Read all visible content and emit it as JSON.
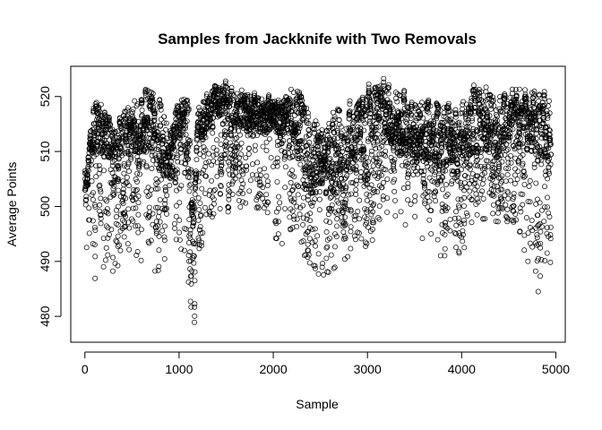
{
  "chart_data": {
    "type": "scatter",
    "title": "Samples from Jackknife with Two Removals",
    "xlabel": "Sample",
    "ylabel": "Average Points",
    "xlim": [
      -150,
      5100
    ],
    "ylim": [
      475.3,
      525.5
    ],
    "xticks": [
      0,
      1000,
      2000,
      3000,
      4000,
      5000
    ],
    "yticks": [
      480,
      490,
      500,
      510,
      520
    ],
    "grid": false,
    "legend": "none",
    "marker": "open-circle",
    "n_points": 4950,
    "series": [
      {
        "outline_x": [
          0,
          100,
          200,
          300,
          400,
          500,
          600,
          700,
          800,
          900,
          1000,
          1100,
          1150,
          1200,
          1300,
          1400,
          1500,
          1600,
          1700,
          1800,
          1900,
          2000,
          2100,
          2200,
          2300,
          2400,
          2500,
          2600,
          2700,
          2800,
          2900,
          3000,
          3100,
          3200,
          3300,
          3400,
          3500,
          3600,
          3700,
          3800,
          3900,
          4000,
          4100,
          4200,
          4300,
          4400,
          4500,
          4600,
          4700,
          4800,
          4900
        ],
        "outline_y_center": [
          503,
          512,
          512,
          510,
          512,
          512,
          513,
          514,
          510,
          508,
          514,
          510,
          496,
          513,
          516,
          518,
          518,
          516,
          516,
          516,
          515,
          516,
          514,
          516,
          510,
          505,
          507,
          507,
          507,
          510,
          511,
          513,
          516,
          516,
          513,
          512,
          510,
          510,
          510,
          508,
          510,
          508,
          513,
          514,
          513,
          512,
          513,
          514,
          514,
          512,
          510
        ],
        "outline_y_min": [
          481,
          486,
          487,
          488,
          490,
          490,
          490,
          489,
          487,
          490,
          493,
          482,
          477,
          484,
          497,
          499,
          499,
          499,
          499,
          499,
          499,
          494,
          493,
          491,
          491,
          489,
          487,
          488,
          488,
          490,
          491,
          492,
          495,
          497,
          497,
          496,
          491,
          491,
          491,
          491,
          491,
          491,
          495,
          497,
          497,
          497,
          497,
          497,
          485,
          484,
          484
        ],
        "outline_y_max": [
          507,
          520,
          520,
          514,
          518,
          521,
          521,
          524,
          521,
          515,
          521,
          521,
          498,
          519,
          522,
          523,
          523,
          522,
          521,
          521,
          521,
          520,
          520,
          523,
          523,
          521,
          515,
          519,
          520,
          521,
          521,
          522,
          524,
          523,
          523,
          522,
          521,
          521,
          521,
          520,
          520,
          521,
          523,
          523,
          522,
          522,
          522,
          523,
          523,
          523,
          523
        ]
      }
    ]
  }
}
